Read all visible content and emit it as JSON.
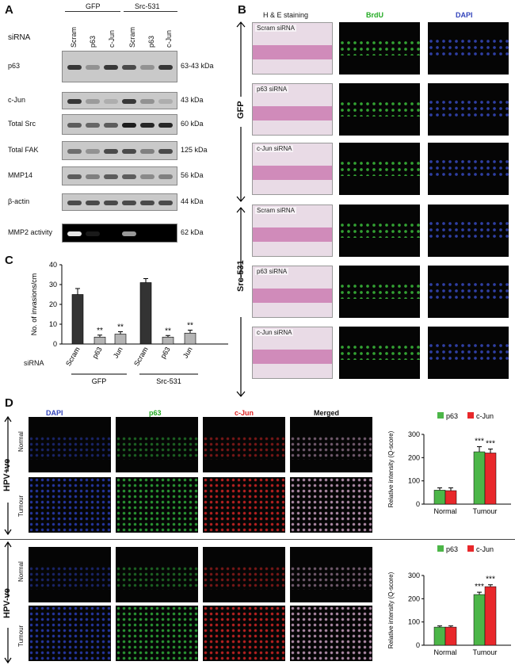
{
  "panel_letters": {
    "a": "A",
    "b": "B",
    "c": "C",
    "d": "D"
  },
  "panelA": {
    "groups": [
      "GFP",
      "Src-531"
    ],
    "row_header": "siRNA",
    "lanes": [
      "Scram",
      "p63",
      "c-Jun",
      "Scram",
      "p63",
      "c-Jun"
    ],
    "blots": [
      {
        "name": "p63",
        "kda": "63-43 kDa"
      },
      {
        "name": "c-Jun",
        "kda": "43 kDa"
      },
      {
        "name": "Total Src",
        "kda": "60 kDa"
      },
      {
        "name": "Total FAK",
        "kda": "125 kDa"
      },
      {
        "name": "MMP14",
        "kda": "56 kDa"
      },
      {
        "name": "β-actin",
        "kda": "44 kDa"
      },
      {
        "name": "MMP2 activity",
        "kda": "62 kDa"
      }
    ]
  },
  "panelB": {
    "col_headers": [
      "H & E staining",
      "BrdU",
      "DAPI"
    ],
    "group_labels": [
      "GFP",
      "Src-531"
    ],
    "rows": [
      "Scram siRNA",
      "p63 siRNA",
      "c-Jun siRNA",
      "Scram siRNA",
      "p63 siRNA",
      "c-Jun siRNA"
    ]
  },
  "panelC": {
    "row_header": "siRNA",
    "group_labels": [
      "GFP",
      "Src-531"
    ],
    "sig": "**"
  },
  "panelD": {
    "col_headers": [
      "DAPI",
      "p63",
      "c-Jun",
      "Merged"
    ],
    "groups": [
      "HPV+ve",
      "HPV-ve"
    ],
    "row_labels": [
      "Normal",
      "Tumour"
    ],
    "sig": "***"
  },
  "colors": {
    "p63": "#4cb648",
    "cjun": "#e8282b",
    "bar_dark": "#333333",
    "bar_grey": "#b5b5b5"
  },
  "chart_data": [
    {
      "type": "bar",
      "categories": [
        "Scram",
        "p63",
        "Jun",
        "Scram",
        "p63",
        "Jun"
      ],
      "values": [
        25,
        3.5,
        5,
        31,
        3.5,
        5.5
      ],
      "errors": [
        3,
        1,
        1.2,
        2,
        0.8,
        1.5
      ],
      "annotations": [
        "",
        "**",
        "**",
        "",
        "**",
        "**"
      ],
      "xlabel": "",
      "ylabel": "No. of invasions/cm",
      "ylim": [
        0,
        40
      ],
      "yticks": [
        0,
        10,
        20,
        30,
        40
      ]
    },
    {
      "type": "bar",
      "categories": [
        "Normal",
        "Tumour"
      ],
      "series": [
        {
          "name": "p63",
          "values": [
            60,
            225
          ],
          "errors": [
            10,
            22
          ]
        },
        {
          "name": "c-Jun",
          "values": [
            58,
            220
          ],
          "errors": [
            12,
            17
          ]
        }
      ],
      "annotations": [
        "",
        "***"
      ],
      "ylabel": "Relative intensity (Q-score)",
      "ylim": [
        0,
        300
      ],
      "yticks": [
        0,
        100,
        200,
        300
      ],
      "legend": "top"
    },
    {
      "type": "bar",
      "categories": [
        "Normal",
        "Tumour"
      ],
      "series": [
        {
          "name": "p63",
          "values": [
            78,
            218
          ],
          "errors": [
            5,
            10
          ]
        },
        {
          "name": "c-Jun",
          "values": [
            78,
            252
          ],
          "errors": [
            5,
            8
          ]
        }
      ],
      "annotations": [
        "",
        "***"
      ],
      "ylabel": "Relative intensity (Q-score)",
      "ylim": [
        0,
        300
      ],
      "yticks": [
        0,
        100,
        200,
        300
      ],
      "legend": "top"
    }
  ]
}
